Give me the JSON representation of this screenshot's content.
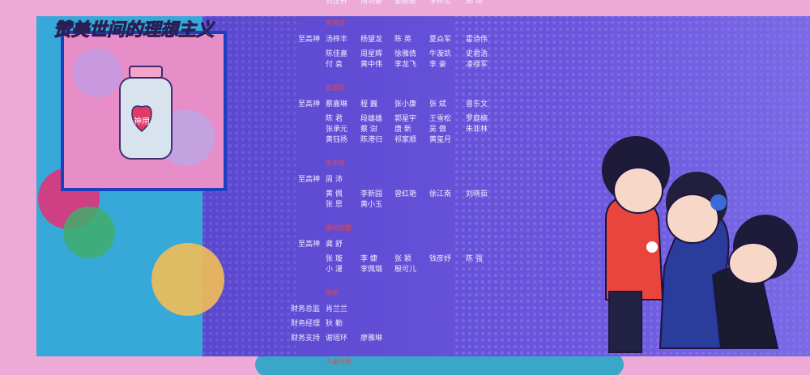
{
  "title": "赞美世间的理想主义",
  "top_row": [
    "刘正轩",
    "周玥豪",
    "姜鹏敏",
    "李梓忠",
    "郑 琪"
  ],
  "pill_label": "神用",
  "sections": [
    {
      "header": "营销部",
      "rows": [
        {
          "role": "至高神",
          "names": [
            "汤梓丰",
            "杨望龙",
            "陈 英",
            "夏焱军",
            "霍诗伟"
          ]
        },
        {
          "names": [
            "陈佳嘉",
            "周星辉",
            "徐雅倩",
            "牛漩凯",
            "史君浩"
          ]
        },
        {
          "names": [
            "付 袁",
            "黄中伟",
            "李龙飞",
            "李 豪",
            "凌禄军"
          ]
        }
      ]
    },
    {
      "header": "宣发部",
      "rows": [
        {
          "role": "至高神",
          "names": [
            "蔡嘉琳",
            "程 巍",
            "张小康",
            "张 斌",
            "曾东文"
          ]
        },
        {
          "names": [
            "陈 君",
            "段雄雄",
            "郭星宇",
            "王雪松",
            "罗庭楠"
          ]
        },
        {
          "names": [
            "张承元",
            "蔡 澍",
            "唐 新",
            "吴 傲",
            "朱亚林"
          ]
        },
        {
          "names": [
            "黄钰扬",
            "陈港归",
            "祁家顺",
            "黄玺月"
          ]
        }
      ]
    },
    {
      "header": "美术部",
      "rows": [
        {
          "role": "至高神",
          "names": [
            "周 沛"
          ]
        },
        {
          "names": [
            "黄 佩",
            "李新园",
            "曾红艳",
            "徐江南",
            "刘晓茹"
          ]
        },
        {
          "names": [
            "张 思",
            "黄小玉"
          ]
        }
      ]
    },
    {
      "header": "素材后期",
      "rows": [
        {
          "role": "至高神",
          "names": [
            "龚 舒"
          ]
        },
        {
          "names": [
            "张 璇",
            "李 婕",
            "张 颖",
            "钱彦妤",
            "陈 强"
          ]
        },
        {
          "names": [
            "小 漫",
            "李佩璐",
            "殷可儿"
          ]
        }
      ]
    },
    {
      "header": "财务",
      "rows": [
        {
          "role": "财务总监",
          "names": [
            "肖兰兰"
          ]
        },
        {
          "role": "财务经理",
          "names": [
            "狄 勤"
          ]
        },
        {
          "role": "财务支持",
          "names": [
            "谢瑶环",
            "廖雅琳"
          ]
        }
      ]
    },
    {
      "header": "人事行政",
      "rows": []
    }
  ]
}
